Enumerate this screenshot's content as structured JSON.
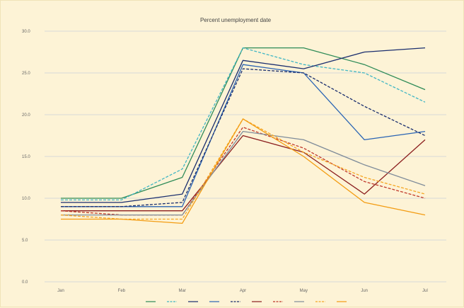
{
  "chart_data": {
    "type": "line",
    "title": "Percent unemployment date",
    "xlabel": "",
    "ylabel": "",
    "categories": [
      "Jan",
      "Feb",
      "Mar",
      "Apr",
      "May",
      "Jun",
      "Jul"
    ],
    "ylim": [
      0,
      30
    ],
    "ytick_labels": [
      "0.0",
      "5.0",
      "10.0",
      "15.0",
      "20.0",
      "25.0",
      "30.0"
    ],
    "grid": true,
    "legend_position": "bottom",
    "series": [
      {
        "name": "",
        "color": "#2e8b57",
        "dash": false,
        "values": [
          10.0,
          10.0,
          12.5,
          28.0,
          28.0,
          26.0,
          23.0
        ]
      },
      {
        "name": "",
        "color": "#41b6c4",
        "dash": true,
        "values": [
          9.8,
          9.8,
          13.5,
          28.0,
          26.0,
          25.0,
          21.5
        ]
      },
      {
        "name": "",
        "color": "#1a2e6e",
        "dash": false,
        "values": [
          9.5,
          9.5,
          10.5,
          26.5,
          25.5,
          27.5,
          28.0
        ]
      },
      {
        "name": "",
        "color": "#2a64b4",
        "dash": false,
        "values": [
          9.0,
          9.0,
          9.0,
          26.0,
          25.0,
          17.0,
          18.0
        ]
      },
      {
        "name": "",
        "color": "#1a2e6e",
        "dash": true,
        "values": [
          9.0,
          9.0,
          9.5,
          25.5,
          25.0,
          21.0,
          17.5
        ]
      },
      {
        "name": "",
        "color": "#8b1e1e",
        "dash": false,
        "values": [
          8.5,
          8.5,
          8.5,
          17.5,
          15.5,
          10.5,
          17.0
        ]
      },
      {
        "name": "",
        "color": "#c0392b",
        "dash": true,
        "values": [
          8.5,
          8.0,
          8.0,
          18.5,
          16.0,
          12.0,
          10.0
        ]
      },
      {
        "name": "",
        "color": "#7f8c9a",
        "dash": false,
        "values": [
          8.0,
          8.0,
          8.0,
          18.0,
          17.0,
          14.0,
          11.5
        ]
      },
      {
        "name": "",
        "color": "#f5a623",
        "dash": true,
        "values": [
          8.0,
          7.5,
          7.5,
          19.5,
          15.5,
          12.5,
          10.5
        ]
      },
      {
        "name": "",
        "color": "#f39c12",
        "dash": false,
        "values": [
          7.5,
          7.5,
          7.0,
          19.5,
          15.0,
          9.5,
          8.0
        ]
      }
    ]
  }
}
